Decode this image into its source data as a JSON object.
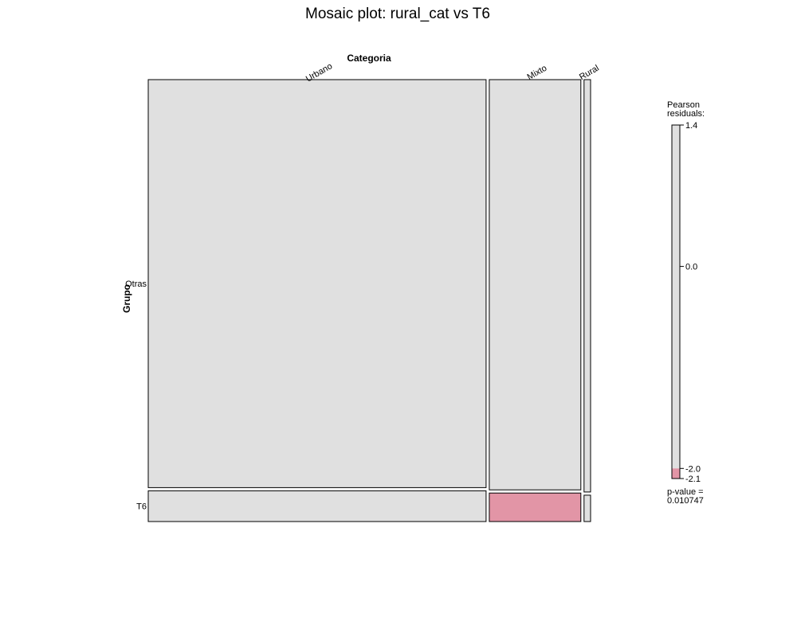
{
  "chart_data": {
    "type": "mosaic",
    "title": "Mosaic plot: rural_cat vs T6",
    "column_variable": "Categoria",
    "row_variable": "Grupo",
    "columns": [
      "Urbano",
      "Mixto",
      "Rural"
    ],
    "rows": [
      "Otras",
      "T6"
    ],
    "column_proportions": [
      0.775,
      0.21,
      0.015
    ],
    "row_proportions_within_column": {
      "Urbano": [
        0.93,
        0.07
      ],
      "Mixto": [
        0.935,
        0.065
      ],
      "Rural": [
        0.94,
        0.06
      ]
    },
    "cell_residual_sign": {
      "Urbano": [
        "none",
        "none"
      ],
      "Mixto": [
        "none",
        "negative"
      ],
      "Rural": [
        "none",
        "none"
      ]
    },
    "legend": {
      "title_line1": "Pearson",
      "title_line2": "residuals:",
      "range": [
        -2.1,
        1.4
      ],
      "ticks": [
        {
          "value": 1.4,
          "label": "1.4"
        },
        {
          "value": 0.0,
          "label": "0.0"
        },
        {
          "value": -2.0,
          "label": "-2.0"
        },
        {
          "value": -2.1,
          "label": "-2.1"
        }
      ],
      "pvalue_line1": "p-value =",
      "pvalue_line2": "0.010747"
    },
    "colors": {
      "neutral": "#e0e0e0",
      "negative": "#e295a6",
      "border": "#000000"
    }
  }
}
